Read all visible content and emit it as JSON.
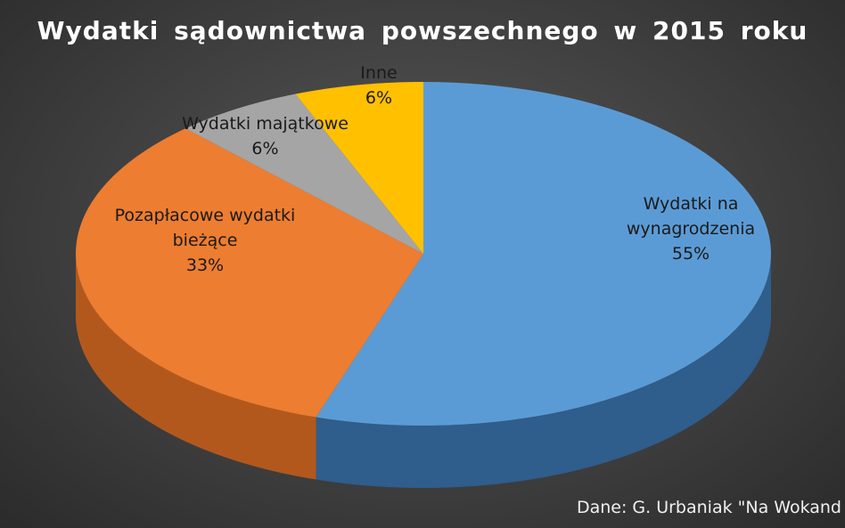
{
  "chart_data": {
    "type": "pie",
    "title": "Wydatki sądownictwa powszechnego  w 2015 roku",
    "style": "3d",
    "slices": [
      {
        "label": "Wydatki na wynagrodzenia",
        "label_lines": [
          "Wydatki na",
          "wynagrodzenia"
        ],
        "value": 55,
        "display": "55%",
        "color": "#5b9bd5",
        "side_color": "#2f5d8c"
      },
      {
        "label": "Pozapłacowe wydatki bieżące",
        "label_lines": [
          "Pozapłacowe wydatki",
          "bieżące"
        ],
        "value": 33,
        "display": "33%",
        "color": "#ed7d31",
        "side_color": "#b3581c"
      },
      {
        "label": "Wydatki majątkowe",
        "label_lines": [
          "Wydatki majątkowe"
        ],
        "value": 6,
        "display": "6%",
        "color": "#a5a5a5",
        "side_color": "#7a7a7a"
      },
      {
        "label": "Inne",
        "label_lines": [
          "Inne"
        ],
        "value": 6,
        "display": "6%",
        "color": "#ffc000",
        "side_color": "#c08f00"
      }
    ],
    "source": "Dane: G. Urbaniak \"Na Wokand"
  }
}
